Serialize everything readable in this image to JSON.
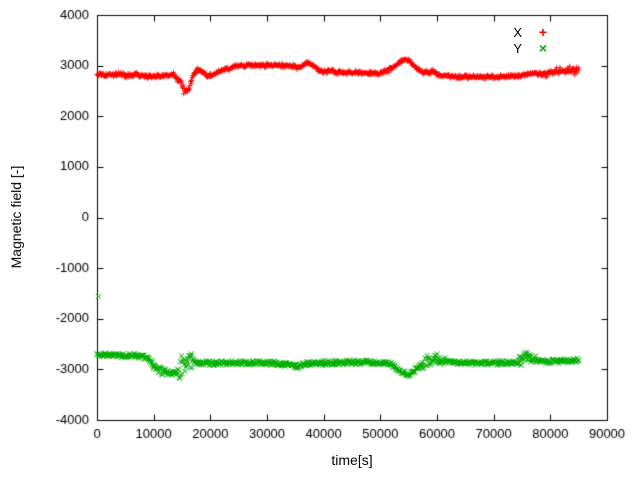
{
  "chart_data": {
    "type": "scatter",
    "title": "",
    "xlabel": "time[s]",
    "ylabel": "Magnetic field [-]",
    "xlim": [
      0,
      90000
    ],
    "ylim": [
      -4000,
      4000
    ],
    "x_ticks": [
      0,
      10000,
      20000,
      30000,
      40000,
      50000,
      60000,
      70000,
      80000,
      90000
    ],
    "y_ticks": [
      -4000,
      -3000,
      -2000,
      -1000,
      0,
      1000,
      2000,
      3000,
      4000
    ],
    "grid": false,
    "background": "#ffffff",
    "axis_color": "#000000",
    "legend": {
      "position": "top-right",
      "entries": [
        {
          "label": "X",
          "color": "#ff0000",
          "marker": "plus"
        },
        {
          "label": "Y",
          "color": "#00b000",
          "marker": "times"
        }
      ]
    },
    "series": [
      {
        "name": "X",
        "color": "#ff0000",
        "marker": "plus",
        "keypoints": [
          [
            0,
            2810
          ],
          [
            2000,
            2820
          ],
          [
            4000,
            2830
          ],
          [
            5000,
            2800
          ],
          [
            7000,
            2820
          ],
          [
            9000,
            2780
          ],
          [
            10000,
            2800
          ],
          [
            12000,
            2800
          ],
          [
            13500,
            2820
          ],
          [
            14800,
            2650
          ],
          [
            15500,
            2480
          ],
          [
            16200,
            2550
          ],
          [
            17000,
            2800
          ],
          [
            17800,
            2930
          ],
          [
            18500,
            2900
          ],
          [
            19500,
            2790
          ],
          [
            20500,
            2820
          ],
          [
            21500,
            2880
          ],
          [
            23000,
            2930
          ],
          [
            24500,
            2980
          ],
          [
            25500,
            3000
          ],
          [
            27000,
            3010
          ],
          [
            29000,
            3000
          ],
          [
            31000,
            3010
          ],
          [
            33000,
            3000
          ],
          [
            34500,
            2990
          ],
          [
            35500,
            2960
          ],
          [
            36500,
            3010
          ],
          [
            37300,
            3060
          ],
          [
            38000,
            3010
          ],
          [
            39000,
            2920
          ],
          [
            40000,
            2870
          ],
          [
            41000,
            2910
          ],
          [
            42000,
            2870
          ],
          [
            43500,
            2860
          ],
          [
            45000,
            2870
          ],
          [
            46500,
            2850
          ],
          [
            48000,
            2860
          ],
          [
            49500,
            2850
          ],
          [
            51000,
            2890
          ],
          [
            52000,
            2940
          ],
          [
            53000,
            3020
          ],
          [
            54000,
            3110
          ],
          [
            54800,
            3120
          ],
          [
            55500,
            3040
          ],
          [
            56500,
            2940
          ],
          [
            57500,
            2880
          ],
          [
            58500,
            2860
          ],
          [
            59500,
            2880
          ],
          [
            60500,
            2820
          ],
          [
            61500,
            2800
          ],
          [
            62500,
            2790
          ],
          [
            64000,
            2780
          ],
          [
            66000,
            2780
          ],
          [
            68000,
            2780
          ],
          [
            70000,
            2780
          ],
          [
            72000,
            2785
          ],
          [
            74000,
            2790
          ],
          [
            75500,
            2810
          ],
          [
            76500,
            2840
          ],
          [
            77500,
            2850
          ],
          [
            78500,
            2830
          ],
          [
            79500,
            2850
          ],
          [
            80500,
            2870
          ],
          [
            81500,
            2900
          ],
          [
            82500,
            2890
          ],
          [
            83500,
            2920
          ],
          [
            84500,
            2890
          ],
          [
            85000,
            2950
          ]
        ],
        "outliers": []
      },
      {
        "name": "Y",
        "color": "#00b000",
        "marker": "times",
        "keypoints": [
          [
            0,
            -2710
          ],
          [
            2000,
            -2715
          ],
          [
            4000,
            -2720
          ],
          [
            6000,
            -2725
          ],
          [
            8000,
            -2740
          ],
          [
            9000,
            -2790
          ],
          [
            9800,
            -2900
          ],
          [
            10500,
            -2990
          ],
          [
            11500,
            -3030
          ],
          [
            12500,
            -3060
          ],
          [
            13500,
            -3070
          ],
          [
            14300,
            -3040
          ],
          [
            15000,
            -2950
          ],
          [
            15800,
            -2850
          ],
          [
            16500,
            -2800
          ],
          [
            17200,
            -2860
          ],
          [
            18000,
            -2875
          ],
          [
            20000,
            -2875
          ],
          [
            22000,
            -2870
          ],
          [
            24000,
            -2875
          ],
          [
            26000,
            -2875
          ],
          [
            28000,
            -2870
          ],
          [
            30000,
            -2875
          ],
          [
            32000,
            -2895
          ],
          [
            33500,
            -2890
          ],
          [
            34800,
            -2930
          ],
          [
            35500,
            -2945
          ],
          [
            36500,
            -2900
          ],
          [
            37500,
            -2880
          ],
          [
            39000,
            -2875
          ],
          [
            41000,
            -2865
          ],
          [
            43000,
            -2870
          ],
          [
            45000,
            -2860
          ],
          [
            47000,
            -2870
          ],
          [
            49000,
            -2865
          ],
          [
            51000,
            -2880
          ],
          [
            52000,
            -2910
          ],
          [
            53000,
            -2990
          ],
          [
            54000,
            -3070
          ],
          [
            54800,
            -3105
          ],
          [
            55600,
            -3080
          ],
          [
            56500,
            -2990
          ],
          [
            57300,
            -2910
          ],
          [
            58000,
            -2855
          ],
          [
            59000,
            -2825
          ],
          [
            60000,
            -2805
          ],
          [
            61000,
            -2835
          ],
          [
            62000,
            -2855
          ],
          [
            63500,
            -2865
          ],
          [
            65000,
            -2870
          ],
          [
            67000,
            -2875
          ],
          [
            69000,
            -2875
          ],
          [
            71000,
            -2870
          ],
          [
            73000,
            -2875
          ],
          [
            74800,
            -2840
          ],
          [
            75800,
            -2730
          ],
          [
            76500,
            -2760
          ],
          [
            77300,
            -2810
          ],
          [
            78500,
            -2835
          ],
          [
            80000,
            -2850
          ],
          [
            81500,
            -2840
          ],
          [
            83000,
            -2835
          ],
          [
            84500,
            -2825
          ],
          [
            85000,
            -2820
          ]
        ],
        "outliers": [
          [
            250,
            -1560
          ]
        ]
      }
    ],
    "noise": {
      "sample_step": 100,
      "base_jitter": {
        "X": 50,
        "Y": 55
      },
      "regions": {
        "X": [
          [
            14000,
            16500,
            45
          ],
          [
            79000,
            85500,
            30
          ]
        ],
        "Y": [
          [
            9000,
            14500,
            30
          ],
          [
            14500,
            16800,
            300
          ],
          [
            57500,
            61500,
            80
          ],
          [
            74500,
            77500,
            50
          ]
        ]
      }
    }
  }
}
